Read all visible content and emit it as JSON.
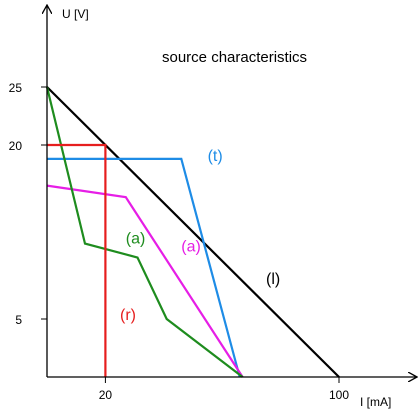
{
  "chart_data": {
    "type": "line",
    "title": "source characteristics",
    "xlabel": "I [mA]",
    "ylabel": "U [V]",
    "xlim": [
      0,
      130
    ],
    "ylim": [
      0,
      31
    ],
    "x_ticks": [
      20,
      100
    ],
    "y_ticks": [
      5,
      20,
      25
    ],
    "grid": false,
    "legend": "none",
    "series": [
      {
        "name": "(l)",
        "color": "#000000",
        "x": [
          0,
          100
        ],
        "y": [
          25,
          0
        ],
        "label_at": [
          75,
          8
        ]
      },
      {
        "name": "(t)",
        "color": "#1e8ce6",
        "x": [
          0,
          46,
          66
        ],
        "y": [
          18.8,
          18.8,
          0
        ],
        "label_at": [
          55,
          18.6
        ]
      },
      {
        "name": "(a)",
        "color": "#e61ee6",
        "x": [
          0,
          27,
          67
        ],
        "y": [
          16.5,
          15.5,
          0
        ],
        "label_at": [
          46,
          10.8
        ]
      },
      {
        "name": "(a)",
        "color": "#1e8c1e",
        "x": [
          0,
          13,
          31,
          41,
          67
        ],
        "y": [
          25,
          11.5,
          10.3,
          5,
          0
        ],
        "label_at": [
          27,
          11.5
        ]
      },
      {
        "name": "(r)",
        "color": "#e61e1e",
        "x": [
          0,
          20,
          20
        ],
        "y": [
          20,
          20,
          0
        ],
        "label_at": [
          25,
          4.9
        ]
      }
    ]
  }
}
